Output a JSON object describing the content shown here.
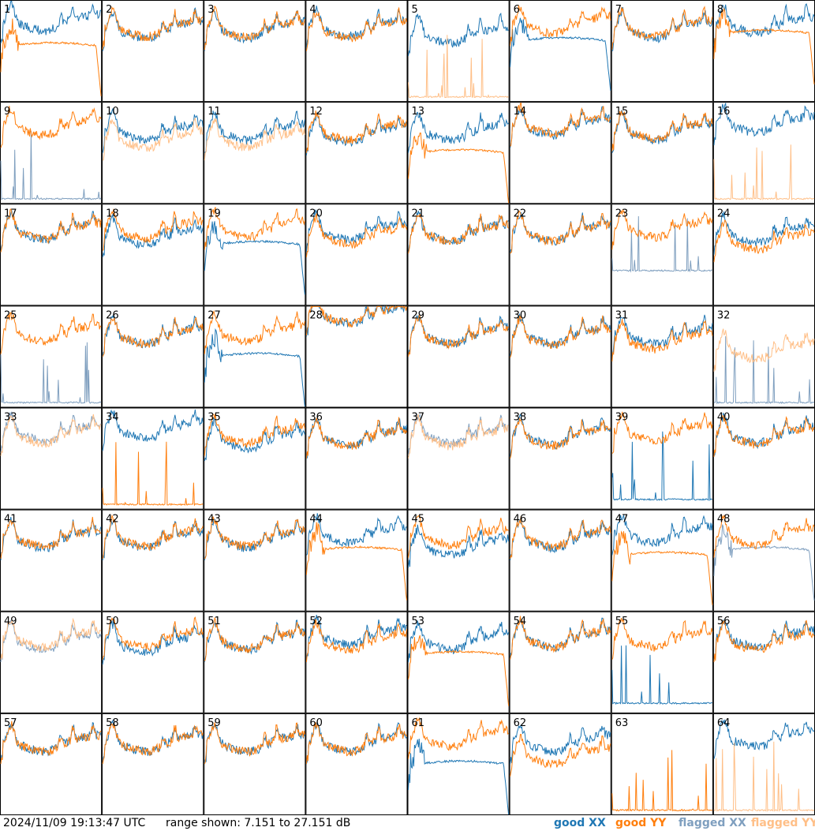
{
  "footer": {
    "timestamp": "2024/11/09 19:13:47 UTC",
    "range_label": "range shown: 7.151 to 27.151 dB"
  },
  "legend": [
    {
      "label": "good XX",
      "color": "#1f77b4"
    },
    {
      "label": "good YY",
      "color": "#ff7f0e"
    },
    {
      "label": "flagged XX",
      "color": "#7f9fbf"
    },
    {
      "label": "flagged YY",
      "color": "#ffbf87"
    }
  ],
  "chart_data": {
    "type": "line",
    "grid": {
      "rows": 8,
      "cols": 8
    },
    "y_range_db": [
      7.151,
      27.151
    ],
    "x_range": [
      0,
      1
    ],
    "series_names": [
      "good XX",
      "good YY",
      "flagged XX",
      "flagged YY"
    ],
    "panels": [
      {
        "label": "1",
        "xx": {
          "kind": "norm",
          "level": 22.5,
          "flag": false
        },
        "yy": {
          "kind": "dip",
          "level": 18,
          "flag": false
        }
      },
      {
        "label": "2",
        "xx": {
          "kind": "norm",
          "level": 21,
          "flag": false
        },
        "yy": {
          "kind": "norm",
          "level": 21.3,
          "flag": false
        }
      },
      {
        "label": "3",
        "xx": {
          "kind": "norm",
          "level": 21,
          "flag": false
        },
        "yy": {
          "kind": "norm",
          "level": 21.2,
          "flag": false
        }
      },
      {
        "label": "4",
        "xx": {
          "kind": "norm",
          "level": 21.5,
          "flag": false
        },
        "yy": {
          "kind": "norm",
          "level": 21,
          "flag": false
        }
      },
      {
        "label": "5",
        "xx": {
          "kind": "norm",
          "level": 20,
          "flag": false
        },
        "yy": {
          "kind": "spikes",
          "level": 8,
          "flag": true
        }
      },
      {
        "label": "6",
        "xx": {
          "kind": "dip",
          "level": 19,
          "flag": false
        },
        "yy": {
          "kind": "norm",
          "level": 22,
          "flag": false
        }
      },
      {
        "label": "7",
        "xx": {
          "kind": "norm",
          "level": 21,
          "flag": false
        },
        "yy": {
          "kind": "norm",
          "level": 21.3,
          "flag": false
        }
      },
      {
        "label": "8",
        "xx": {
          "kind": "norm",
          "level": 22,
          "flag": false
        },
        "yy": {
          "kind": "dip",
          "level": 20.5,
          "flag": false
        }
      },
      {
        "label": "9",
        "xx": {
          "kind": "spikes",
          "level": 8,
          "flag": true
        },
        "yy": {
          "kind": "norm",
          "level": 22,
          "flag": false
        }
      },
      {
        "label": "10",
        "xx": {
          "kind": "norm",
          "level": 21,
          "flag": false
        },
        "yy": {
          "kind": "norm",
          "level": 19.5,
          "flag": true
        }
      },
      {
        "label": "11",
        "xx": {
          "kind": "norm",
          "level": 21,
          "flag": false
        },
        "yy": {
          "kind": "norm",
          "level": 19.5,
          "flag": true
        }
      },
      {
        "label": "12",
        "xx": {
          "kind": "norm",
          "level": 20.5,
          "flag": false
        },
        "yy": {
          "kind": "norm",
          "level": 21,
          "flag": false
        }
      },
      {
        "label": "13",
        "xx": {
          "kind": "norm",
          "level": 21,
          "flag": false
        },
        "yy": {
          "kind": "dip",
          "level": 17,
          "flag": false
        }
      },
      {
        "label": "14",
        "xx": {
          "kind": "norm",
          "level": 22,
          "flag": false
        },
        "yy": {
          "kind": "norm",
          "level": 22.3,
          "flag": false
        }
      },
      {
        "label": "15",
        "xx": {
          "kind": "norm",
          "level": 21,
          "flag": false
        },
        "yy": {
          "kind": "norm",
          "level": 21.3,
          "flag": false
        }
      },
      {
        "label": "16",
        "xx": {
          "kind": "norm",
          "level": 22.5,
          "flag": false
        },
        "yy": {
          "kind": "spikes",
          "level": 8,
          "flag": true
        }
      },
      {
        "label": "17",
        "xx": {
          "kind": "norm",
          "level": 21.5,
          "flag": false
        },
        "yy": {
          "kind": "norm",
          "level": 21.5,
          "flag": false
        }
      },
      {
        "label": "18",
        "xx": {
          "kind": "norm",
          "level": 20.5,
          "flag": false
        },
        "yy": {
          "kind": "norm",
          "level": 21.8,
          "flag": false
        }
      },
      {
        "label": "19",
        "xx": {
          "kind": "dip",
          "level": 19,
          "flag": false
        },
        "yy": {
          "kind": "norm",
          "level": 22,
          "flag": false
        }
      },
      {
        "label": "20",
        "xx": {
          "kind": "norm",
          "level": 21.5,
          "flag": false
        },
        "yy": {
          "kind": "norm",
          "level": 20.5,
          "flag": false
        }
      },
      {
        "label": "21",
        "xx": {
          "kind": "norm",
          "level": 21.2,
          "flag": false
        },
        "yy": {
          "kind": "norm",
          "level": 21.2,
          "flag": false
        }
      },
      {
        "label": "22",
        "xx": {
          "kind": "norm",
          "level": 21.2,
          "flag": false
        },
        "yy": {
          "kind": "norm",
          "level": 21.2,
          "flag": false
        }
      },
      {
        "label": "23",
        "xx": {
          "kind": "spikes",
          "level": 14,
          "flag": true
        },
        "yy": {
          "kind": "norm",
          "level": 22,
          "flag": false
        }
      },
      {
        "label": "24",
        "xx": {
          "kind": "norm",
          "level": 21,
          "flag": false
        },
        "yy": {
          "kind": "norm",
          "level": 19.5,
          "flag": false
        }
      },
      {
        "label": "25",
        "xx": {
          "kind": "spikes",
          "level": 8,
          "flag": true
        },
        "yy": {
          "kind": "norm",
          "level": 21.5,
          "flag": false
        }
      },
      {
        "label": "26",
        "xx": {
          "kind": "norm",
          "level": 21,
          "flag": false
        },
        "yy": {
          "kind": "norm",
          "level": 21,
          "flag": false
        }
      },
      {
        "label": "27",
        "xx": {
          "kind": "dip",
          "level": 17,
          "flag": false
        },
        "yy": {
          "kind": "norm",
          "level": 21.5,
          "flag": false
        }
      },
      {
        "label": "28",
        "xx": {
          "kind": "norm",
          "level": 25,
          "flag": false
        },
        "yy": {
          "kind": "norm",
          "level": 25.2,
          "flag": false
        }
      },
      {
        "label": "29",
        "xx": {
          "kind": "norm",
          "level": 21,
          "flag": false
        },
        "yy": {
          "kind": "norm",
          "level": 21,
          "flag": false
        }
      },
      {
        "label": "30",
        "xx": {
          "kind": "norm",
          "level": 21,
          "flag": false
        },
        "yy": {
          "kind": "norm",
          "level": 20.8,
          "flag": false
        }
      },
      {
        "label": "31",
        "xx": {
          "kind": "norm",
          "level": 21,
          "flag": false
        },
        "yy": {
          "kind": "norm",
          "level": 20,
          "flag": false
        }
      },
      {
        "label": "32",
        "xx": {
          "kind": "spikes",
          "level": 8,
          "flag": true
        },
        "yy": {
          "kind": "norm",
          "level": 18,
          "flag": true
        }
      },
      {
        "label": "33",
        "xx": {
          "kind": "norm",
          "level": 22,
          "flag": true
        },
        "yy": {
          "kind": "norm",
          "level": 21.5,
          "flag": true
        }
      },
      {
        "label": "34",
        "xx": {
          "kind": "norm",
          "level": 22.5,
          "flag": false
        },
        "yy": {
          "kind": "spikes",
          "level": 8,
          "flag": false
        }
      },
      {
        "label": "35",
        "xx": {
          "kind": "norm",
          "level": 20.5,
          "flag": false
        },
        "yy": {
          "kind": "norm",
          "level": 21.5,
          "flag": false
        }
      },
      {
        "label": "36",
        "xx": {
          "kind": "norm",
          "level": 21,
          "flag": false
        },
        "yy": {
          "kind": "norm",
          "level": 21,
          "flag": false
        }
      },
      {
        "label": "37",
        "xx": {
          "kind": "norm",
          "level": 21.5,
          "flag": true
        },
        "yy": {
          "kind": "norm",
          "level": 21,
          "flag": true
        }
      },
      {
        "label": "38",
        "xx": {
          "kind": "norm",
          "level": 21.2,
          "flag": false
        },
        "yy": {
          "kind": "norm",
          "level": 21,
          "flag": false
        }
      },
      {
        "label": "39",
        "xx": {
          "kind": "spikes",
          "level": 9,
          "flag": false
        },
        "yy": {
          "kind": "norm",
          "level": 22,
          "flag": false
        }
      },
      {
        "label": "40",
        "xx": {
          "kind": "norm",
          "level": 21.5,
          "flag": false
        },
        "yy": {
          "kind": "norm",
          "level": 21.3,
          "flag": false
        }
      },
      {
        "label": "41",
        "xx": {
          "kind": "norm",
          "level": 21,
          "flag": false
        },
        "yy": {
          "kind": "norm",
          "level": 21.3,
          "flag": false
        }
      },
      {
        "label": "42",
        "xx": {
          "kind": "norm",
          "level": 21,
          "flag": false
        },
        "yy": {
          "kind": "norm",
          "level": 21.3,
          "flag": false
        }
      },
      {
        "label": "43",
        "xx": {
          "kind": "norm",
          "level": 21,
          "flag": false
        },
        "yy": {
          "kind": "norm",
          "level": 21.3,
          "flag": false
        }
      },
      {
        "label": "44",
        "xx": {
          "kind": "norm",
          "level": 22,
          "flag": false
        },
        "yy": {
          "kind": "dip",
          "level": 19,
          "flag": false
        }
      },
      {
        "label": "45",
        "xx": {
          "kind": "norm",
          "level": 19.5,
          "flag": false
        },
        "yy": {
          "kind": "norm",
          "level": 21.5,
          "flag": false
        }
      },
      {
        "label": "46",
        "xx": {
          "kind": "norm",
          "level": 21,
          "flag": false
        },
        "yy": {
          "kind": "norm",
          "level": 21.3,
          "flag": false
        }
      },
      {
        "label": "47",
        "xx": {
          "kind": "norm",
          "level": 22,
          "flag": false
        },
        "yy": {
          "kind": "dip",
          "level": 18,
          "flag": false
        }
      },
      {
        "label": "48",
        "xx": {
          "kind": "dip",
          "level": 19,
          "flag": true
        },
        "yy": {
          "kind": "norm",
          "level": 21.5,
          "flag": false
        }
      },
      {
        "label": "49",
        "xx": {
          "kind": "norm",
          "level": 21,
          "flag": true
        },
        "yy": {
          "kind": "norm",
          "level": 21.5,
          "flag": true
        }
      },
      {
        "label": "50",
        "xx": {
          "kind": "norm",
          "level": 20.5,
          "flag": false
        },
        "yy": {
          "kind": "norm",
          "level": 21.5,
          "flag": false
        }
      },
      {
        "label": "51",
        "xx": {
          "kind": "norm",
          "level": 21,
          "flag": false
        },
        "yy": {
          "kind": "norm",
          "level": 21.2,
          "flag": false
        }
      },
      {
        "label": "52",
        "xx": {
          "kind": "norm",
          "level": 22,
          "flag": false
        },
        "yy": {
          "kind": "norm",
          "level": 21,
          "flag": false
        }
      },
      {
        "label": "53",
        "xx": {
          "kind": "norm",
          "level": 21,
          "flag": false
        },
        "yy": {
          "kind": "dip",
          "level": 18.5,
          "flag": false
        }
      },
      {
        "label": "54",
        "xx": {
          "kind": "norm",
          "level": 21.5,
          "flag": false
        },
        "yy": {
          "kind": "norm",
          "level": 21.5,
          "flag": false
        }
      },
      {
        "label": "55",
        "xx": {
          "kind": "spikes",
          "level": 9,
          "flag": false
        },
        "yy": {
          "kind": "norm",
          "level": 21.5,
          "flag": false
        }
      },
      {
        "label": "56",
        "xx": {
          "kind": "norm",
          "level": 21.5,
          "flag": false
        },
        "yy": {
          "kind": "norm",
          "level": 21,
          "flag": false
        }
      },
      {
        "label": "57",
        "xx": {
          "kind": "norm",
          "level": 21,
          "flag": false
        },
        "yy": {
          "kind": "norm",
          "level": 21,
          "flag": false
        }
      },
      {
        "label": "58",
        "xx": {
          "kind": "norm",
          "level": 21,
          "flag": false
        },
        "yy": {
          "kind": "norm",
          "level": 21,
          "flag": false
        }
      },
      {
        "label": "59",
        "xx": {
          "kind": "norm",
          "level": 21,
          "flag": false
        },
        "yy": {
          "kind": "norm",
          "level": 21,
          "flag": false
        }
      },
      {
        "label": "60",
        "xx": {
          "kind": "norm",
          "level": 21,
          "flag": false
        },
        "yy": {
          "kind": "norm",
          "level": 21,
          "flag": false
        }
      },
      {
        "label": "61",
        "xx": {
          "kind": "dip",
          "level": 17,
          "flag": false
        },
        "yy": {
          "kind": "norm",
          "level": 22,
          "flag": false
        }
      },
      {
        "label": "62",
        "xx": {
          "kind": "norm",
          "level": 21,
          "flag": false
        },
        "yy": {
          "kind": "norm",
          "level": 18.5,
          "flag": false
        }
      },
      {
        "label": "63",
        "xx": {
          "kind": "none",
          "level": 8,
          "flag": false
        },
        "yy": {
          "kind": "spikes",
          "level": 8,
          "flag": false
        }
      },
      {
        "label": "64",
        "xx": {
          "kind": "norm",
          "level": 22,
          "flag": false
        },
        "yy": {
          "kind": "spikes",
          "level": 8,
          "flag": true
        }
      }
    ]
  }
}
